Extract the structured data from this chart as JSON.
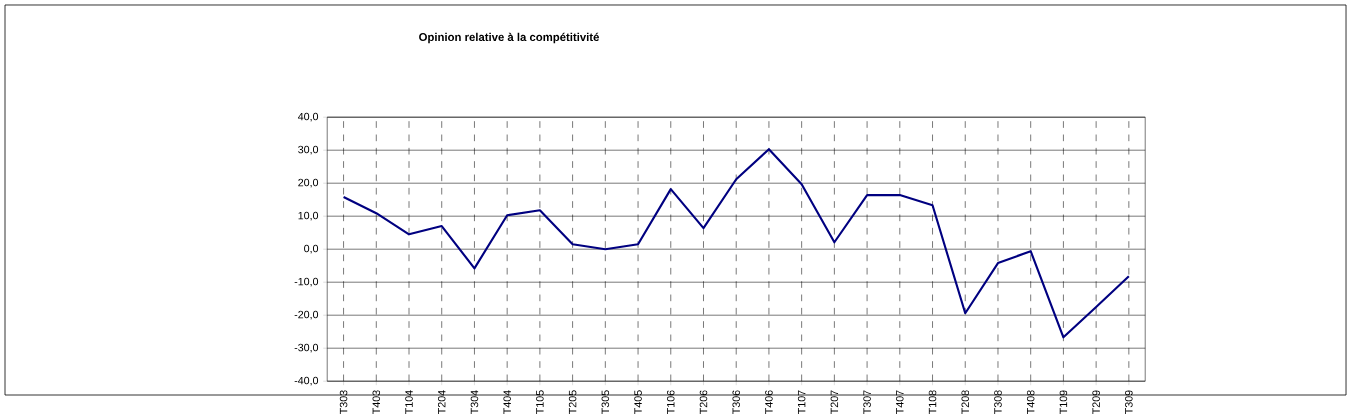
{
  "chart_data": {
    "type": "line",
    "title": "Opinion relative à la compétitivité",
    "categories": [
      "T303",
      "T403",
      "T104",
      "T204",
      "T304",
      "T404",
      "T105",
      "T205",
      "T305",
      "T405",
      "T106",
      "T206",
      "T306",
      "T406",
      "T107",
      "T207",
      "T307",
      "T407",
      "T108",
      "T208",
      "T308",
      "T408",
      "T109",
      "T209",
      "T309"
    ],
    "series": [
      {
        "color": "#000080",
        "values": [
          15.8,
          10.9,
          4.5,
          7.0,
          -5.8,
          10.3,
          11.8,
          1.5,
          0.0,
          1.5,
          18.2,
          6.4,
          21.2,
          30.3,
          19.7,
          2.1,
          16.4,
          16.4,
          13.3,
          -19.4,
          -4.2,
          -0.6,
          -26.7,
          -17.5,
          -8.2
        ]
      }
    ],
    "ylim": [
      -40,
      40
    ],
    "yticks": [
      {
        "value": -40,
        "label": "-40,0"
      },
      {
        "value": -30,
        "label": "-30,0"
      },
      {
        "value": -20,
        "label": "-20,0"
      },
      {
        "value": -10,
        "label": "-10,0"
      },
      {
        "value": 0,
        "label": "0,0"
      },
      {
        "value": 10,
        "label": "10,0"
      },
      {
        "value": 20,
        "label": "20,0"
      },
      {
        "value": 30,
        "label": "30,0"
      },
      {
        "value": 40,
        "label": "40,0"
      }
    ],
    "grid": true,
    "legend": false,
    "marker": "none",
    "line_style": "solid"
  }
}
